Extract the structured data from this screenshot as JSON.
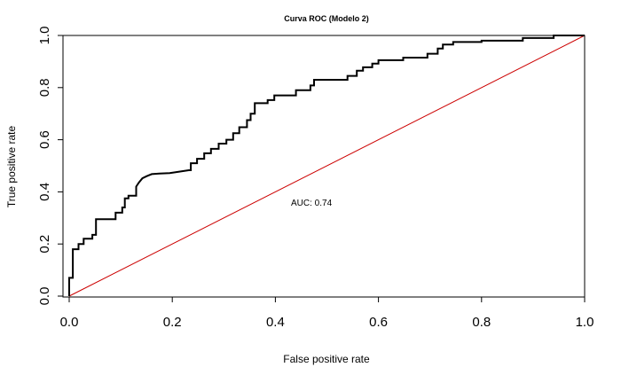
{
  "chart_data": {
    "type": "line",
    "title": "Curva ROC (Modelo 2)",
    "xlabel": "False positive rate",
    "ylabel": "True positive rate",
    "xlim": [
      0,
      1
    ],
    "ylim": [
      0,
      1
    ],
    "x_ticks": [
      "0.0",
      "0.2",
      "0.4",
      "0.6",
      "0.8",
      "1.0"
    ],
    "y_ticks": [
      "0.0",
      "0.2",
      "0.4",
      "0.6",
      "0.8",
      "1.0"
    ],
    "grid": false,
    "annotation": "AUC: 0.74",
    "series": [
      {
        "color": "#000000",
        "points": [
          [
            0.0,
            0.0
          ],
          [
            0.0,
            0.07
          ],
          [
            0.007,
            0.07
          ],
          [
            0.007,
            0.18
          ],
          [
            0.018,
            0.18
          ],
          [
            0.018,
            0.2
          ],
          [
            0.028,
            0.2
          ],
          [
            0.028,
            0.22
          ],
          [
            0.045,
            0.22
          ],
          [
            0.045,
            0.235
          ],
          [
            0.052,
            0.235
          ],
          [
            0.052,
            0.295
          ],
          [
            0.09,
            0.295
          ],
          [
            0.09,
            0.32
          ],
          [
            0.103,
            0.32
          ],
          [
            0.103,
            0.34
          ],
          [
            0.108,
            0.34
          ],
          [
            0.108,
            0.375
          ],
          [
            0.115,
            0.375
          ],
          [
            0.115,
            0.385
          ],
          [
            0.13,
            0.385
          ],
          [
            0.13,
            0.42
          ],
          [
            0.135,
            0.435
          ],
          [
            0.142,
            0.452
          ],
          [
            0.15,
            0.46
          ],
          [
            0.16,
            0.468
          ],
          [
            0.175,
            0.47
          ],
          [
            0.195,
            0.472
          ],
          [
            0.215,
            0.478
          ],
          [
            0.232,
            0.483
          ],
          [
            0.236,
            0.483
          ],
          [
            0.236,
            0.51
          ],
          [
            0.248,
            0.51
          ],
          [
            0.248,
            0.527
          ],
          [
            0.262,
            0.527
          ],
          [
            0.262,
            0.548
          ],
          [
            0.275,
            0.548
          ],
          [
            0.275,
            0.565
          ],
          [
            0.29,
            0.565
          ],
          [
            0.29,
            0.585
          ],
          [
            0.305,
            0.585
          ],
          [
            0.305,
            0.6
          ],
          [
            0.318,
            0.6
          ],
          [
            0.318,
            0.625
          ],
          [
            0.33,
            0.625
          ],
          [
            0.33,
            0.648
          ],
          [
            0.345,
            0.648
          ],
          [
            0.345,
            0.675
          ],
          [
            0.352,
            0.675
          ],
          [
            0.352,
            0.7
          ],
          [
            0.36,
            0.7
          ],
          [
            0.36,
            0.74
          ],
          [
            0.385,
            0.74
          ],
          [
            0.385,
            0.752
          ],
          [
            0.398,
            0.752
          ],
          [
            0.398,
            0.77
          ],
          [
            0.44,
            0.77
          ],
          [
            0.44,
            0.79
          ],
          [
            0.468,
            0.79
          ],
          [
            0.468,
            0.808
          ],
          [
            0.475,
            0.808
          ],
          [
            0.475,
            0.83
          ],
          [
            0.54,
            0.83
          ],
          [
            0.54,
            0.845
          ],
          [
            0.558,
            0.845
          ],
          [
            0.558,
            0.865
          ],
          [
            0.57,
            0.865
          ],
          [
            0.57,
            0.878
          ],
          [
            0.588,
            0.878
          ],
          [
            0.588,
            0.892
          ],
          [
            0.6,
            0.892
          ],
          [
            0.6,
            0.905
          ],
          [
            0.648,
            0.905
          ],
          [
            0.648,
            0.915
          ],
          [
            0.695,
            0.915
          ],
          [
            0.695,
            0.93
          ],
          [
            0.715,
            0.93
          ],
          [
            0.715,
            0.95
          ],
          [
            0.725,
            0.95
          ],
          [
            0.725,
            0.965
          ],
          [
            0.745,
            0.965
          ],
          [
            0.745,
            0.975
          ],
          [
            0.8,
            0.975
          ],
          [
            0.8,
            0.98
          ],
          [
            0.88,
            0.98
          ],
          [
            0.88,
            0.99
          ],
          [
            0.94,
            0.99
          ],
          [
            0.94,
            1.0
          ],
          [
            1.0,
            1.0
          ]
        ]
      },
      {
        "color": "#cc0000",
        "points": [
          [
            0,
            0
          ],
          [
            1,
            1
          ]
        ]
      }
    ]
  }
}
